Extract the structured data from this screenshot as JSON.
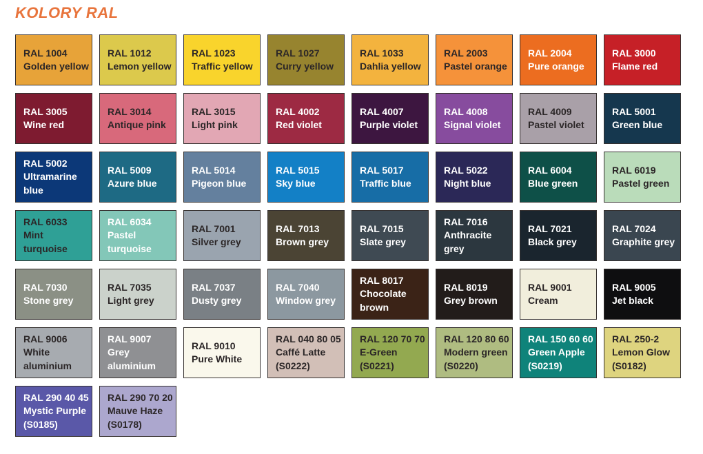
{
  "header": {
    "title": "KOLORY RAL"
  },
  "palette": {
    "title_color": "#E8743C",
    "tile_border": "#35302F",
    "text_dark": "#2B2627",
    "text_light": "#FFFFFF",
    "page_background": "#FFFFFF"
  },
  "chart_data": {
    "type": "table",
    "title": "KOLORY RAL",
    "columns": 8,
    "note": "RAL color swatch grid, 50 swatches"
  },
  "swatches": [
    {
      "code": "RAL 1004",
      "name": "Golden yellow",
      "sub": "",
      "bg": "#E7A339",
      "fg": "dark"
    },
    {
      "code": "RAL 1012",
      "name": "Lemon yellow",
      "sub": "",
      "bg": "#DCC94C",
      "fg": "dark"
    },
    {
      "code": "RAL 1023",
      "name": "Traffic yellow",
      "sub": "",
      "bg": "#F9D42C",
      "fg": "dark"
    },
    {
      "code": "RAL 1027",
      "name": "Curry yellow",
      "sub": "",
      "bg": "#97842F",
      "fg": "dark"
    },
    {
      "code": "RAL 1033",
      "name": "Dahlia yellow",
      "sub": "",
      "bg": "#F3B33E",
      "fg": "dark"
    },
    {
      "code": "RAL 2003",
      "name": "Pastel orange",
      "sub": "",
      "bg": "#F5923A",
      "fg": "dark"
    },
    {
      "code": "RAL 2004",
      "name": "Pure orange",
      "sub": "",
      "bg": "#EC6D20",
      "fg": "light"
    },
    {
      "code": "RAL 3000",
      "name": "Flame red",
      "sub": "",
      "bg": "#C62027",
      "fg": "light"
    },
    {
      "code": "RAL 3005",
      "name": "Wine red",
      "sub": "",
      "bg": "#7E1B30",
      "fg": "light"
    },
    {
      "code": "RAL 3014",
      "name": "Antique pink",
      "sub": "",
      "bg": "#D8697B",
      "fg": "dark"
    },
    {
      "code": "RAL 3015",
      "name": "Light pink",
      "sub": "",
      "bg": "#E2A7B4",
      "fg": "dark"
    },
    {
      "code": "RAL 4002",
      "name": "Red violet",
      "sub": "",
      "bg": "#9D2A43",
      "fg": "light"
    },
    {
      "code": "RAL 4007",
      "name": "Purple violet",
      "sub": "",
      "bg": "#3D1640",
      "fg": "light"
    },
    {
      "code": "RAL 4008",
      "name": "Signal violet",
      "sub": "",
      "bg": "#874C9E",
      "fg": "light"
    },
    {
      "code": "RAL 4009",
      "name": "Pastel violet",
      "sub": "",
      "bg": "#A9A0A8",
      "fg": "dark"
    },
    {
      "code": "RAL 5001",
      "name": "Green blue",
      "sub": "",
      "bg": "#15374E",
      "fg": "light"
    },
    {
      "code": "RAL 5002",
      "name": "Ultramarine blue",
      "sub": "",
      "bg": "#0C3878",
      "fg": "light"
    },
    {
      "code": "RAL 5009",
      "name": "Azure blue",
      "sub": "",
      "bg": "#1E6A84",
      "fg": "light"
    },
    {
      "code": "RAL 5014",
      "name": "Pigeon blue",
      "sub": "",
      "bg": "#64809E",
      "fg": "light"
    },
    {
      "code": "RAL 5015",
      "name": "Sky blue",
      "sub": "",
      "bg": "#1380C6",
      "fg": "light"
    },
    {
      "code": "RAL 5017",
      "name": "Traffic blue",
      "sub": "",
      "bg": "#176DA6",
      "fg": "light"
    },
    {
      "code": "RAL 5022",
      "name": "Night blue",
      "sub": "",
      "bg": "#2B2857",
      "fg": "light"
    },
    {
      "code": "RAL 6004",
      "name": "Blue green",
      "sub": "",
      "bg": "#0E5048",
      "fg": "light"
    },
    {
      "code": "RAL 6019",
      "name": "Pastel green",
      "sub": "",
      "bg": "#BADCBA",
      "fg": "dark"
    },
    {
      "code": "RAL 6033",
      "name": "Mint turquoise",
      "sub": "",
      "bg": "#2FA096",
      "fg": "dark"
    },
    {
      "code": "RAL 6034",
      "name": "Pastel turquoise",
      "sub": "",
      "bg": "#83C7B8",
      "fg": "light"
    },
    {
      "code": "RAL 7001",
      "name": "Silver grey",
      "sub": "",
      "bg": "#9AA4AF",
      "fg": "dark"
    },
    {
      "code": "RAL 7013",
      "name": "Brown grey",
      "sub": "",
      "bg": "#4B4434",
      "fg": "light"
    },
    {
      "code": "RAL 7015",
      "name": "Slate grey",
      "sub": "",
      "bg": "#3F4A53",
      "fg": "light"
    },
    {
      "code": "RAL 7016",
      "name": "Anthracite grey",
      "sub": "",
      "bg": "#2C373F",
      "fg": "light"
    },
    {
      "code": "RAL 7021",
      "name": "Black grey",
      "sub": "",
      "bg": "#1A252E",
      "fg": "light"
    },
    {
      "code": "RAL 7024",
      "name": "Graphite grey",
      "sub": "",
      "bg": "#3A4650",
      "fg": "light"
    },
    {
      "code": "RAL 7030",
      "name": "Stone grey",
      "sub": "",
      "bg": "#8B9085",
      "fg": "light"
    },
    {
      "code": "RAL 7035",
      "name": "Light grey",
      "sub": "",
      "bg": "#CBD2CB",
      "fg": "dark"
    },
    {
      "code": "RAL 7037",
      "name": "Dusty grey",
      "sub": "",
      "bg": "#7A8085",
      "fg": "light"
    },
    {
      "code": "RAL 7040",
      "name": "Window grey",
      "sub": "",
      "bg": "#8C98A0",
      "fg": "light"
    },
    {
      "code": "RAL 8017",
      "name": "Chocolate brown",
      "sub": "",
      "bg": "#3B2317",
      "fg": "light"
    },
    {
      "code": "RAL 8019",
      "name": "Grey brown",
      "sub": "",
      "bg": "#221C1A",
      "fg": "light"
    },
    {
      "code": "RAL 9001",
      "name": "Cream",
      "sub": "",
      "bg": "#F1EEDC",
      "fg": "dark"
    },
    {
      "code": "RAL 9005",
      "name": "Jet black",
      "sub": "",
      "bg": "#0E0E10",
      "fg": "light"
    },
    {
      "code": "RAL 9006",
      "name": "White aluminium",
      "sub": "",
      "bg": "#A7ABB0",
      "fg": "dark"
    },
    {
      "code": "RAL 9007",
      "name": "Grey aluminium",
      "sub": "",
      "bg": "#8F9093",
      "fg": "light"
    },
    {
      "code": "RAL 9010",
      "name": "Pure White",
      "sub": "",
      "bg": "#FAF8EC",
      "fg": "dark"
    },
    {
      "code": "RAL 040 80 05",
      "name": "Caffé Latte",
      "sub": "(S0222)",
      "bg": "#D2BFB7",
      "fg": "dark"
    },
    {
      "code": "RAL 120 70 70",
      "name": "E-Green",
      "sub": "(S0221)",
      "bg": "#93A950",
      "fg": "dark"
    },
    {
      "code": "RAL 120 80 60",
      "name": "Modern green",
      "sub": "(S0220)",
      "bg": "#AFBC81",
      "fg": "dark"
    },
    {
      "code": "RAL 150 60 60",
      "name": "Green Apple",
      "sub": "(S0219)",
      "bg": "#0F837A",
      "fg": "light"
    },
    {
      "code": "RAL 250-2",
      "name": "Lemon Glow",
      "sub": "(S0182)",
      "bg": "#DED47F",
      "fg": "dark"
    },
    {
      "code": "RAL 290 40 45",
      "name": "Mystic Purple",
      "sub": "(S0185)",
      "bg": "#5A58A8",
      "fg": "light"
    },
    {
      "code": "RAL 290 70 20",
      "name": "Mauve Haze",
      "sub": "(S0178)",
      "bg": "#ACA7CE",
      "fg": "dark"
    }
  ]
}
